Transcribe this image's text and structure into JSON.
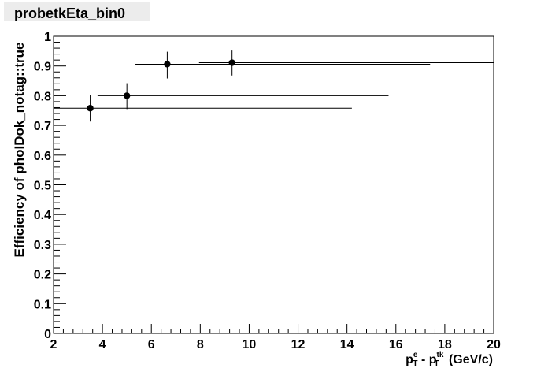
{
  "title": "probetkEta_bin0",
  "chart_data": {
    "type": "scatter",
    "ylabel": "Efficiency of phoIDok_notag::true",
    "xlabel": {
      "p1": "p",
      "p1_sup": "e",
      "p1_sub": "T",
      "minus": " - ",
      "p2": "p",
      "p2_sup": "tk",
      "p2_sub": "T",
      "unit": " (GeV/c)"
    },
    "xlim": [
      2,
      20
    ],
    "ylim": [
      0,
      1
    ],
    "xticks": [
      "2",
      "4",
      "6",
      "8",
      "10",
      "12",
      "14",
      "16",
      "18",
      "20"
    ],
    "yticks": [
      "0",
      "0.1",
      "0.2",
      "0.3",
      "0.4",
      "0.5",
      "0.6",
      "0.7",
      "0.8",
      "0.9",
      "1"
    ],
    "grid": false,
    "points": [
      {
        "x": 3.5,
        "y": 0.758,
        "xlo": 2.0,
        "xhi": 14.2,
        "ylo": 0.713,
        "yhi": 0.803
      },
      {
        "x": 5.0,
        "y": 0.8,
        "xlo": 3.8,
        "xhi": 15.7,
        "ylo": 0.755,
        "yhi": 0.842
      },
      {
        "x": 6.65,
        "y": 0.906,
        "xlo": 5.35,
        "xhi": 17.4,
        "ylo": 0.858,
        "yhi": 0.948
      },
      {
        "x": 9.3,
        "y": 0.911,
        "xlo": 7.95,
        "xhi": 20.0,
        "ylo": 0.868,
        "yhi": 0.952
      }
    ],
    "colors": {
      "marker": "#000000",
      "axis": "#000000",
      "title_bg": "#ececec"
    }
  }
}
